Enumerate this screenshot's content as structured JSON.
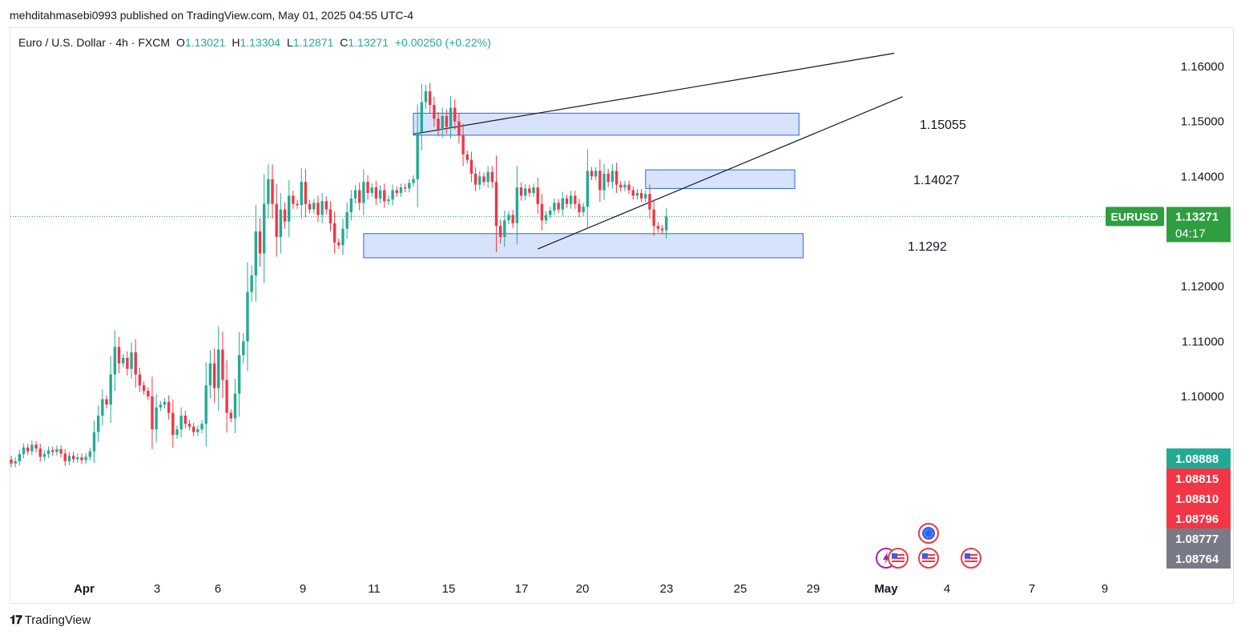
{
  "header": {
    "publisher_line": "mehditahmasebi0993 published on TradingView.com, May 01, 2025 04:55 UTC-4"
  },
  "legend": {
    "symbol_line": "Euro / U.S. Dollar · 4h · FXCM",
    "o_label": "O",
    "o_value": "1.13021",
    "h_label": "H",
    "h_value": "1.13304",
    "l_label": "L",
    "l_value": "1.12871",
    "c_label": "C",
    "c_value": "1.13271",
    "change": "+0.00250 (+0.22%)"
  },
  "footer": {
    "brand": "TradingView"
  },
  "colors": {
    "up": "#22ab94",
    "down": "#f23645",
    "zone_fill": "#d1e0fb",
    "zone_border": "#2962ff",
    "price_tag": "#2e9e3f",
    "tag_red": "#f23645",
    "tag_teal": "#22ab94",
    "tag_gray": "#787b86"
  },
  "chart_data": {
    "type": "candlestick",
    "symbol": "EURUSD",
    "interval": "4h",
    "y_axis": {
      "min": 1.084,
      "max": 1.166,
      "ticks": [
        "1.16000",
        "1.15000",
        "1.14000",
        "1.12000",
        "1.11000",
        "1.10000"
      ]
    },
    "x_ticks": [
      "Apr",
      "3",
      "6",
      "9",
      "11",
      "15",
      "17",
      "20",
      "23",
      "25",
      "29",
      "May",
      "4",
      "7",
      "9"
    ],
    "last_price": {
      "label": "EURUSD",
      "value": "1.13271",
      "countdown": "04:17",
      "level": 1.13271
    },
    "extra_price_tags": [
      {
        "value": "1.08888",
        "kind": "teal"
      },
      {
        "value": "1.08815",
        "kind": "red"
      },
      {
        "value": "1.08810",
        "kind": "red"
      },
      {
        "value": "1.08796",
        "kind": "red"
      },
      {
        "value": "1.08777",
        "kind": "gray"
      },
      {
        "value": "1.08764",
        "kind": "gray"
      }
    ],
    "zones": [
      {
        "label": "1.15055",
        "top": 1.1515,
        "bottom": 1.1475,
        "start_index": 97,
        "end_index": 190
      },
      {
        "label": "1.14027",
        "top": 1.1412,
        "bottom": 1.1378,
        "start_index": 153,
        "end_index": 189
      },
      {
        "label": "1.1292",
        "top": 1.1296,
        "bottom": 1.1252,
        "start_index": 85,
        "end_index": 191
      }
    ],
    "trendlines": [
      {
        "start": [
          97,
          1.1477
        ],
        "end": [
          213,
          1.1624
        ]
      },
      {
        "start": [
          127,
          1.1268
        ],
        "end": [
          215,
          1.1545
        ]
      }
    ],
    "candles": [
      [
        1.0885,
        1.0878
      ],
      [
        1.0878,
        1.0882
      ],
      [
        1.0882,
        1.0895
      ],
      [
        1.0895,
        1.0907
      ],
      [
        1.0907,
        1.09
      ],
      [
        1.09,
        1.0912
      ],
      [
        1.0912,
        1.0905
      ],
      [
        1.0905,
        1.089
      ],
      [
        1.089,
        1.0895
      ],
      [
        1.0895,
        1.0902
      ],
      [
        1.0902,
        1.0899
      ],
      [
        1.0899,
        1.0904
      ],
      [
        1.0904,
        1.0896
      ],
      [
        1.0896,
        1.0882
      ],
      [
        1.0882,
        1.0892
      ],
      [
        1.0892,
        1.0886
      ],
      [
        1.0886,
        1.0889
      ],
      [
        1.0889,
        1.0884
      ],
      [
        1.0884,
        1.089
      ],
      [
        1.089,
        1.09
      ],
      [
        1.09,
        1.0935
      ],
      [
        1.0935,
        1.0965
      ],
      [
        1.0965,
        1.0995
      ],
      [
        1.0995,
        1.0985
      ],
      [
        1.0985,
        1.104
      ],
      [
        1.104,
        1.109
      ],
      [
        1.109,
        1.106
      ],
      [
        1.106,
        1.107
      ],
      [
        1.107,
        1.105
      ],
      [
        1.105,
        1.108
      ],
      [
        1.108,
        1.104
      ],
      [
        1.104,
        1.102
      ],
      [
        1.102,
        1.101
      ],
      [
        1.101,
        1.1
      ],
      [
        1.1,
        1.094
      ],
      [
        1.094,
        1.098
      ],
      [
        1.098,
        1.0985
      ],
      [
        1.0985,
        1.099
      ],
      [
        1.099,
        1.097
      ],
      [
        1.097,
        1.093
      ],
      [
        1.093,
        1.094
      ],
      [
        1.094,
        1.0965
      ],
      [
        1.0965,
        1.095
      ],
      [
        1.095,
        1.0945
      ],
      [
        1.0945,
        1.0935
      ],
      [
        1.0935,
        1.094
      ],
      [
        1.094,
        1.095
      ],
      [
        1.095,
        1.102
      ],
      [
        1.102,
        1.106
      ],
      [
        1.106,
        1.1015
      ],
      [
        1.1015,
        1.1085
      ],
      [
        1.1085,
        1.103
      ],
      [
        1.103,
        1.097
      ],
      [
        1.097,
        1.096
      ],
      [
        1.096,
        1.1005
      ],
      [
        1.1005,
        1.1075
      ],
      [
        1.1075,
        1.11
      ],
      [
        1.11,
        1.119
      ],
      [
        1.119,
        1.122
      ],
      [
        1.122,
        1.13
      ],
      [
        1.13,
        1.126
      ],
      [
        1.126,
        1.135
      ],
      [
        1.135,
        1.1395
      ],
      [
        1.1395,
        1.135
      ],
      [
        1.135,
        1.129
      ],
      [
        1.129,
        1.134
      ],
      [
        1.134,
        1.1318
      ],
      [
        1.1318,
        1.1365
      ],
      [
        1.1365,
        1.135
      ],
      [
        1.135,
        1.1348
      ],
      [
        1.1348,
        1.139
      ],
      [
        1.139,
        1.135
      ],
      [
        1.135,
        1.134
      ],
      [
        1.134,
        1.1352
      ],
      [
        1.1352,
        1.133
      ],
      [
        1.133,
        1.1355
      ],
      [
        1.1355,
        1.134
      ],
      [
        1.134,
        1.1315
      ],
      [
        1.1315,
        1.128
      ],
      [
        1.128,
        1.1275
      ],
      [
        1.1275,
        1.1305
      ],
      [
        1.1305,
        1.1335
      ],
      [
        1.1335,
        1.136
      ],
      [
        1.136,
        1.1375
      ],
      [
        1.1375,
        1.1352
      ],
      [
        1.1352,
        1.139
      ],
      [
        1.139,
        1.137
      ],
      [
        1.137,
        1.138
      ],
      [
        1.138,
        1.136
      ],
      [
        1.136,
        1.1375
      ],
      [
        1.1375,
        1.1355
      ],
      [
        1.1355,
        1.1358
      ],
      [
        1.1358,
        1.1375
      ],
      [
        1.1375,
        1.137
      ],
      [
        1.137,
        1.138
      ],
      [
        1.138,
        1.1378
      ],
      [
        1.1378,
        1.1388
      ],
      [
        1.1388,
        1.1395
      ],
      [
        1.1395,
        1.148
      ],
      [
        1.148,
        1.1535
      ],
      [
        1.1535,
        1.1555
      ],
      [
        1.1555,
        1.153
      ],
      [
        1.153,
        1.1505
      ],
      [
        1.1505,
        1.1485
      ],
      [
        1.1485,
        1.151
      ],
      [
        1.151,
        1.149
      ],
      [
        1.149,
        1.1525
      ],
      [
        1.1525,
        1.15
      ],
      [
        1.15,
        1.1475
      ],
      [
        1.1475,
        1.144
      ],
      [
        1.144,
        1.143
      ],
      [
        1.143,
        1.1405
      ],
      [
        1.1405,
        1.1385
      ],
      [
        1.1385,
        1.14
      ],
      [
        1.14,
        1.139
      ],
      [
        1.139,
        1.1408
      ],
      [
        1.1408,
        1.139
      ],
      [
        1.139,
        1.131
      ],
      [
        1.131,
        1.129
      ],
      [
        1.129,
        1.132
      ],
      [
        1.132,
        1.133
      ],
      [
        1.133,
        1.1315
      ],
      [
        1.1315,
        1.138
      ],
      [
        1.138,
        1.1365
      ],
      [
        1.1365,
        1.1378
      ],
      [
        1.1378,
        1.137
      ],
      [
        1.137,
        1.138
      ],
      [
        1.138,
        1.135
      ],
      [
        1.135,
        1.132
      ],
      [
        1.132,
        1.133
      ],
      [
        1.133,
        1.1338
      ],
      [
        1.1338,
        1.1352
      ],
      [
        1.1352,
        1.134
      ],
      [
        1.134,
        1.136
      ],
      [
        1.136,
        1.135
      ],
      [
        1.135,
        1.1365
      ],
      [
        1.1365,
        1.135
      ],
      [
        1.135,
        1.1335
      ],
      [
        1.1335,
        1.1345
      ],
      [
        1.1345,
        1.141
      ],
      [
        1.141,
        1.14
      ],
      [
        1.14,
        1.141
      ],
      [
        1.141,
        1.1375
      ],
      [
        1.1375,
        1.1405
      ],
      [
        1.1405,
        1.139
      ],
      [
        1.139,
        1.141
      ],
      [
        1.141,
        1.1385
      ],
      [
        1.1385,
        1.138
      ],
      [
        1.138,
        1.1385
      ],
      [
        1.1385,
        1.1375
      ],
      [
        1.1375,
        1.1365
      ],
      [
        1.1365,
        1.137
      ],
      [
        1.137,
        1.136
      ],
      [
        1.136,
        1.1368
      ],
      [
        1.1368,
        1.134
      ],
      [
        1.134,
        1.131
      ],
      [
        1.131,
        1.1305
      ],
      [
        1.1305,
        1.1302
      ],
      [
        1.1302,
        1.1327
      ]
    ]
  }
}
